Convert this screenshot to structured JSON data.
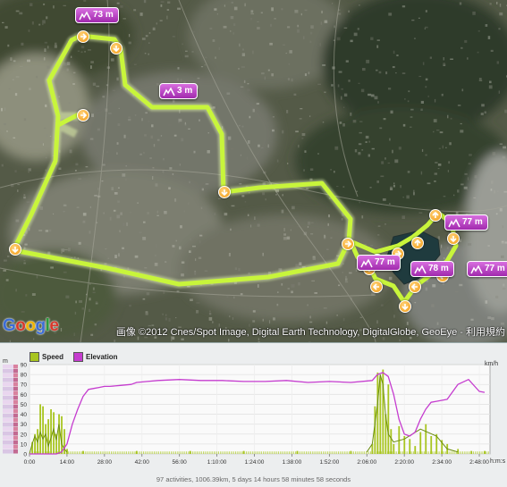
{
  "map": {
    "route_color": "#c8f53b",
    "badge_color": "#b23bbf",
    "elevation_badges": [
      "73 m",
      "3 m",
      "77 m",
      "78 m",
      "77 m",
      "77 m"
    ],
    "arrow_icon": "chevron-direction-icon",
    "logo_text": "Google",
    "attribution": "画像 ©2012 Cnes/Spot Image, Digital Earth Technology, DigitalGlobe, GeoEye - 利用規約"
  },
  "chart": {
    "legend": {
      "speed": "Speed",
      "elevation": "Elevation"
    },
    "colors": {
      "speed": "#a8c520",
      "elevation": "#c53ccf"
    },
    "left_unit": "m",
    "right_unit": "km/h",
    "x_unit": "h:m:s",
    "summary": "97 activities, 1006.39km, 5 days 14 hours 58 minutes 58 seconds"
  },
  "chart_data": {
    "type": "area",
    "x_ticks": [
      "0:00",
      "14:00",
      "28:00",
      "42:00",
      "56:00",
      "1:10:00",
      "1:24:00",
      "1:38:00",
      "1:52:00",
      "2:06:00",
      "2:20:00",
      "2:34:00",
      "2:48:00"
    ],
    "y_ticks": [
      0,
      10,
      20,
      30,
      40,
      50,
      60,
      70,
      80,
      90
    ],
    "ylim": [
      0,
      90
    ],
    "xlim_minutes": [
      0,
      172
    ],
    "grid": true,
    "series": [
      {
        "name": "Elevation",
        "type": "line",
        "x_minutes": [
          0,
          2,
          4,
          6,
          8,
          10,
          12,
          14,
          16,
          18,
          20,
          22,
          24,
          26,
          28,
          30,
          34,
          38,
          40,
          44,
          48,
          56,
          64,
          72,
          80,
          88,
          96,
          104,
          112,
          120,
          128,
          130,
          132,
          134,
          136,
          138,
          140,
          142,
          144,
          146,
          148,
          150,
          152,
          156,
          160,
          164,
          168,
          170
        ],
        "values": [
          0,
          0,
          0,
          0,
          0,
          0,
          2,
          10,
          30,
          45,
          58,
          65,
          66,
          67,
          68,
          68,
          69,
          70,
          72,
          73,
          74,
          75,
          74,
          74,
          73,
          73,
          74,
          72,
          73,
          72,
          74,
          80,
          82,
          78,
          60,
          35,
          20,
          18,
          22,
          35,
          45,
          52,
          53,
          55,
          70,
          75,
          63,
          62
        ]
      },
      {
        "name": "Speed",
        "type": "bar",
        "x_minutes": [
          0,
          1,
          2,
          3,
          4,
          5,
          6,
          7,
          8,
          9,
          10,
          11,
          12,
          13,
          14,
          20,
          40,
          60,
          80,
          100,
          120,
          128,
          129,
          130,
          131,
          132,
          133,
          134,
          135,
          136,
          138,
          140,
          142,
          144,
          146,
          148,
          150,
          152,
          154,
          156,
          160,
          165,
          170
        ],
        "values": [
          0,
          12,
          20,
          25,
          50,
          48,
          30,
          35,
          45,
          42,
          20,
          40,
          38,
          25,
          5,
          3,
          3,
          3,
          3,
          3,
          3,
          10,
          48,
          82,
          78,
          85,
          40,
          70,
          25,
          10,
          28,
          18,
          15,
          8,
          22,
          30,
          18,
          20,
          14,
          10,
          5,
          3,
          3
        ]
      }
    ]
  }
}
